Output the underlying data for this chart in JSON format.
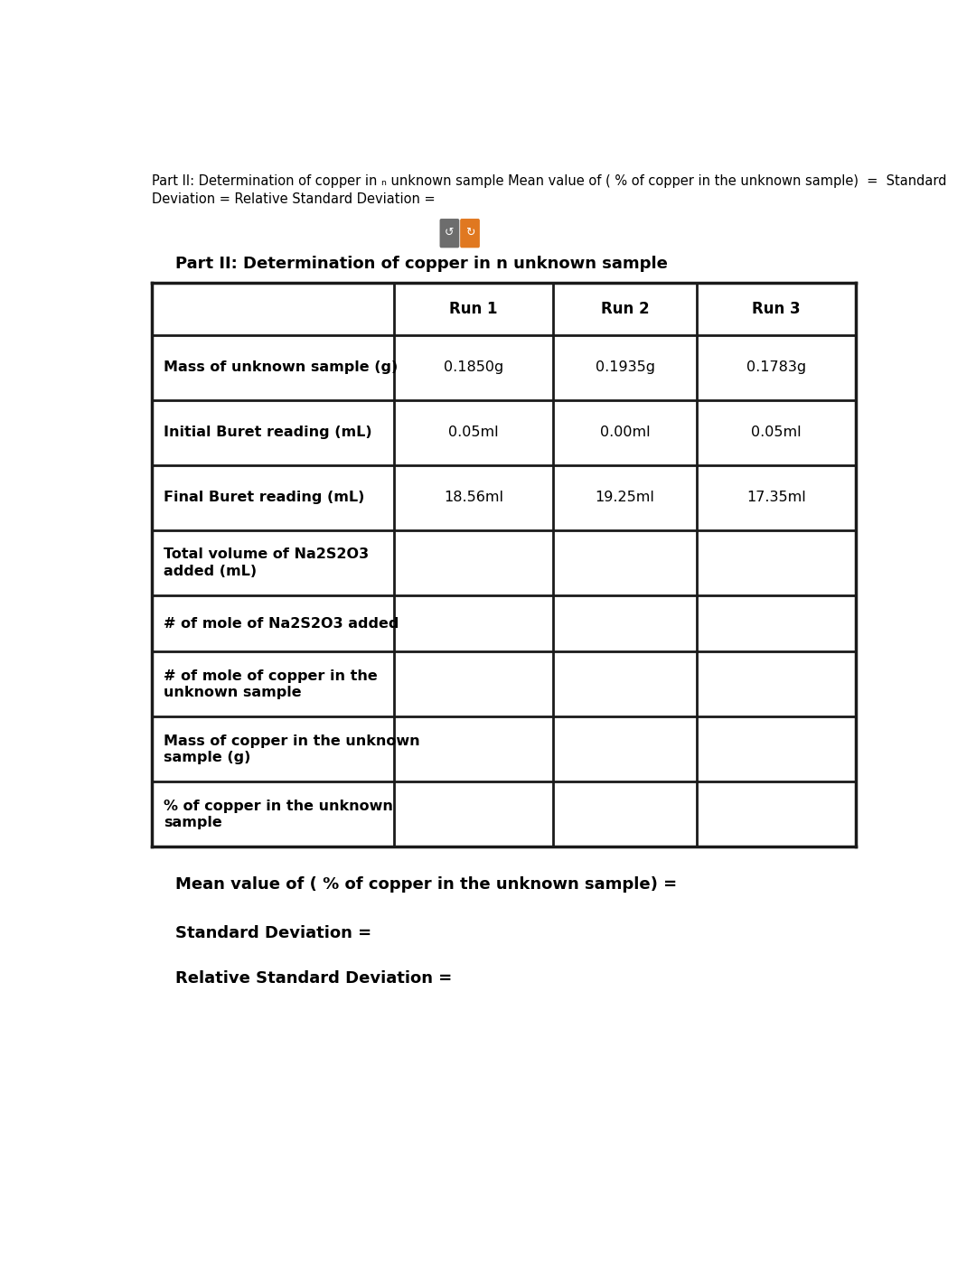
{
  "bg_color": "#ffffff",
  "page_width": 10.8,
  "page_height": 13.98,
  "header_text_line1": "Part II: Determination of copper in ₙ unknown sample Mean value of ( % of copper in the unknown sample)  =  Standard",
  "header_text_line2": "Deviation = Relative Standard Deviation =",
  "section_title": "Part II: Determination of copper in n unknown sample",
  "col_headers": [
    "Run 1",
    "Run 2",
    "Run 3"
  ],
  "row_labels": [
    "Mass of unknown sample (g)",
    "Initial Buret reading (mL)",
    "Final Buret reading (mL)",
    "Total volume of Na2S2O3\nadded (mL)",
    "# of mole of Na2S2O3 added",
    "# of mole of copper in the\nunknown sample",
    "Mass of copper in the unknown\nsample (g)",
    "% of copper in the unknown\nsample"
  ],
  "data_cells": [
    [
      "0.1850g",
      "0.1935g",
      "0.1783g"
    ],
    [
      "0.05ml",
      "0.00ml",
      "0.05ml"
    ],
    [
      "18.56ml",
      "19.25ml",
      "17.35ml"
    ],
    [
      "",
      "",
      ""
    ],
    [
      "",
      "",
      ""
    ],
    [
      "",
      "",
      ""
    ],
    [
      "",
      "",
      ""
    ],
    [
      "",
      "",
      ""
    ]
  ],
  "footer_lines": [
    "Mean value of ( % of copper in the unknown sample) =",
    "Standard Deviation =",
    "Relative Standard Deviation ="
  ],
  "icon_gray_color": "#6d6d6d",
  "icon_orange_color": "#e07820",
  "table_border_color": "#1a1a1a",
  "table_lw": 2.0,
  "header_fontsize": 10.5,
  "section_title_fontsize": 13,
  "col_header_fontsize": 12,
  "row_label_fontsize": 11.5,
  "cell_data_fontsize": 11.5,
  "footer_fontsize": 13
}
